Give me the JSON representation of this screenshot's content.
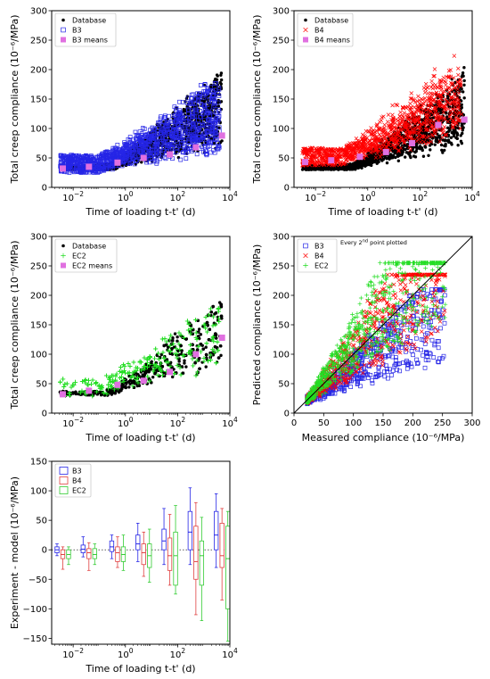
{
  "chart_data": [
    {
      "id": "p1",
      "type": "scatter",
      "xlabel": "Time of loading t-t' (d)",
      "ylabel": "Total creep compliance (10⁻⁶/MPa)",
      "xscale": "log",
      "xlim": [
        0.0015,
        10000
      ],
      "ylim": [
        0,
        300
      ],
      "xticks": [
        {
          "v": 0.01,
          "b": "10",
          "e": "-2"
        },
        {
          "v": 1,
          "b": "10",
          "e": "0"
        },
        {
          "v": 100,
          "b": "10",
          "e": "2"
        },
        {
          "v": 10000,
          "b": "10",
          "e": "4"
        }
      ],
      "yticks": [
        0,
        50,
        100,
        150,
        200,
        250,
        300
      ],
      "legend": "top-left",
      "series": [
        {
          "name": "Database",
          "marker": "dot",
          "color": "#000000"
        },
        {
          "name": "B3",
          "marker": "open-square",
          "color": "#2525e6"
        },
        {
          "name": "B3 means",
          "marker": "filled-square",
          "color": "#e070e0"
        }
      ],
      "means": [
        [
          0.004,
          32
        ],
        [
          0.04,
          35
        ],
        [
          0.5,
          42
        ],
        [
          5,
          50
        ],
        [
          50,
          56
        ],
        [
          500,
          68
        ],
        [
          5000,
          88
        ]
      ]
    },
    {
      "id": "p2",
      "type": "scatter",
      "xlabel": "Time of loading t-t' (d)",
      "ylabel": "Total creep compliance (10⁻⁶/MPa)",
      "xscale": "log",
      "xlim": [
        0.0015,
        10000
      ],
      "ylim": [
        0,
        300
      ],
      "xticks": [
        {
          "v": 0.01,
          "b": "10",
          "e": "-2"
        },
        {
          "v": 1,
          "b": "10",
          "e": "0"
        },
        {
          "v": 100,
          "b": "10",
          "e": "2"
        },
        {
          "v": 10000,
          "b": "10",
          "e": "4"
        }
      ],
      "yticks": [
        0,
        50,
        100,
        150,
        200,
        250,
        300
      ],
      "legend": "top-left",
      "series": [
        {
          "name": "Database",
          "marker": "dot",
          "color": "#000000"
        },
        {
          "name": "B4",
          "marker": "x",
          "color": "#ff0000"
        },
        {
          "name": "B4 means",
          "marker": "filled-square",
          "color": "#e070e0"
        }
      ],
      "means": [
        [
          0.004,
          43
        ],
        [
          0.04,
          46
        ],
        [
          0.5,
          52
        ],
        [
          5,
          60
        ],
        [
          50,
          75
        ],
        [
          500,
          106
        ],
        [
          5000,
          115
        ]
      ]
    },
    {
      "id": "p3",
      "type": "scatter",
      "xlabel": "Time of loading t-t' (d)",
      "ylabel": "Total creep compliance (10⁻⁶/MPa)",
      "xscale": "log",
      "xlim": [
        0.0015,
        10000
      ],
      "ylim": [
        0,
        300
      ],
      "xticks": [
        {
          "v": 0.01,
          "b": "10",
          "e": "-2"
        },
        {
          "v": 1,
          "b": "10",
          "e": "0"
        },
        {
          "v": 100,
          "b": "10",
          "e": "2"
        },
        {
          "v": 10000,
          "b": "10",
          "e": "4"
        }
      ],
      "yticks": [
        0,
        50,
        100,
        150,
        200,
        250,
        300
      ],
      "legend": "top-left",
      "series": [
        {
          "name": "Database",
          "marker": "dot",
          "color": "#000000"
        },
        {
          "name": "EC2",
          "marker": "plus",
          "color": "#22dd22"
        },
        {
          "name": "EC2 means",
          "marker": "filled-square",
          "color": "#e070e0"
        }
      ],
      "means": [
        [
          0.004,
          32
        ],
        [
          0.04,
          38
        ],
        [
          0.5,
          48
        ],
        [
          5,
          55
        ],
        [
          50,
          70
        ],
        [
          500,
          100
        ],
        [
          5000,
          128
        ]
      ]
    },
    {
      "id": "p4",
      "type": "scatter",
      "xlabel": "Measured compliance (10⁻⁶/MPa)",
      "ylabel": "Predicted compliance (10⁻⁶/MPa)",
      "xscale": "linear",
      "xlim": [
        0,
        300
      ],
      "ylim": [
        0,
        300
      ],
      "xticks": [
        0,
        50,
        100,
        150,
        200,
        250,
        300
      ],
      "yticks": [
        0,
        50,
        100,
        150,
        200,
        250,
        300
      ],
      "legend": "top-left",
      "annotation": {
        "pre": "Every 2",
        "sup": "nd",
        "post": " point plotted"
      },
      "identity_line": true,
      "series": [
        {
          "name": "B3",
          "marker": "open-square",
          "color": "#2525e6"
        },
        {
          "name": "B4",
          "marker": "x",
          "color": "#ff0000"
        },
        {
          "name": "EC2",
          "marker": "plus",
          "color": "#22dd22"
        }
      ]
    },
    {
      "id": "p5",
      "type": "box",
      "xlabel": "Time of loading t-t' (d)",
      "ylabel": "Experiment - model (10⁻⁶/MPa)",
      "xscale": "log",
      "xlim": [
        0.0015,
        10000
      ],
      "ylim": [
        -160,
        150
      ],
      "xticks": [
        {
          "v": 0.01,
          "b": "10",
          "e": "-2"
        },
        {
          "v": 1,
          "b": "10",
          "e": "0"
        },
        {
          "v": 100,
          "b": "10",
          "e": "2"
        },
        {
          "v": 10000,
          "b": "10",
          "e": "4"
        }
      ],
      "yticks": [
        -150,
        -100,
        -50,
        0,
        50,
        100,
        150
      ],
      "legend": "top-left",
      "zero_line": "dotted",
      "categories": [
        0.004,
        0.04,
        0.5,
        5,
        50,
        500,
        5000
      ],
      "series": [
        {
          "name": "B3",
          "color": "#2525e6",
          "boxes": [
            {
              "q1": -5,
              "med": 0,
              "q3": 5,
              "lo": -10,
              "hi": 10
            },
            {
              "q1": -5,
              "med": 1,
              "q3": 8,
              "lo": -12,
              "hi": 22
            },
            {
              "q1": -3,
              "med": 5,
              "q3": 15,
              "lo": -15,
              "hi": 25
            },
            {
              "q1": 0,
              "med": 10,
              "q3": 25,
              "lo": -20,
              "hi": 45
            },
            {
              "q1": 0,
              "med": 15,
              "q3": 35,
              "lo": -25,
              "hi": 70
            },
            {
              "q1": 0,
              "med": 30,
              "q3": 65,
              "lo": -25,
              "hi": 105
            },
            {
              "q1": 0,
              "med": 25,
              "q3": 65,
              "lo": -30,
              "hi": 95
            }
          ]
        },
        {
          "name": "B4",
          "color": "#e04040",
          "boxes": [
            {
              "q1": -15,
              "med": -8,
              "q3": 0,
              "lo": -33,
              "hi": 5
            },
            {
              "q1": -15,
              "med": -5,
              "q3": 2,
              "lo": -35,
              "hi": 12
            },
            {
              "q1": -20,
              "med": -5,
              "q3": 5,
              "lo": -30,
              "hi": 22
            },
            {
              "q1": -25,
              "med": -5,
              "q3": 10,
              "lo": -45,
              "hi": 30
            },
            {
              "q1": -35,
              "med": -10,
              "q3": 20,
              "lo": -60,
              "hi": 60
            },
            {
              "q1": -50,
              "med": -20,
              "q3": 40,
              "lo": -110,
              "hi": 80
            },
            {
              "q1": -30,
              "med": -10,
              "q3": 45,
              "lo": -85,
              "hi": 70
            }
          ]
        },
        {
          "name": "EC2",
          "color": "#33cc33",
          "boxes": [
            {
              "q1": -15,
              "med": -8,
              "q3": 0,
              "lo": -25,
              "hi": 5
            },
            {
              "q1": -15,
              "med": -8,
              "q3": 2,
              "lo": -25,
              "hi": 10
            },
            {
              "q1": -20,
              "med": -8,
              "q3": 5,
              "lo": -35,
              "hi": 25
            },
            {
              "q1": -30,
              "med": -10,
              "q3": 10,
              "lo": -55,
              "hi": 35
            },
            {
              "q1": -60,
              "med": -10,
              "q3": 30,
              "lo": -75,
              "hi": 75
            },
            {
              "q1": -60,
              "med": -10,
              "q3": 15,
              "lo": -120,
              "hi": 55
            },
            {
              "q1": -100,
              "med": -15,
              "q3": 40,
              "lo": -155,
              "hi": 65
            }
          ]
        }
      ]
    }
  ]
}
